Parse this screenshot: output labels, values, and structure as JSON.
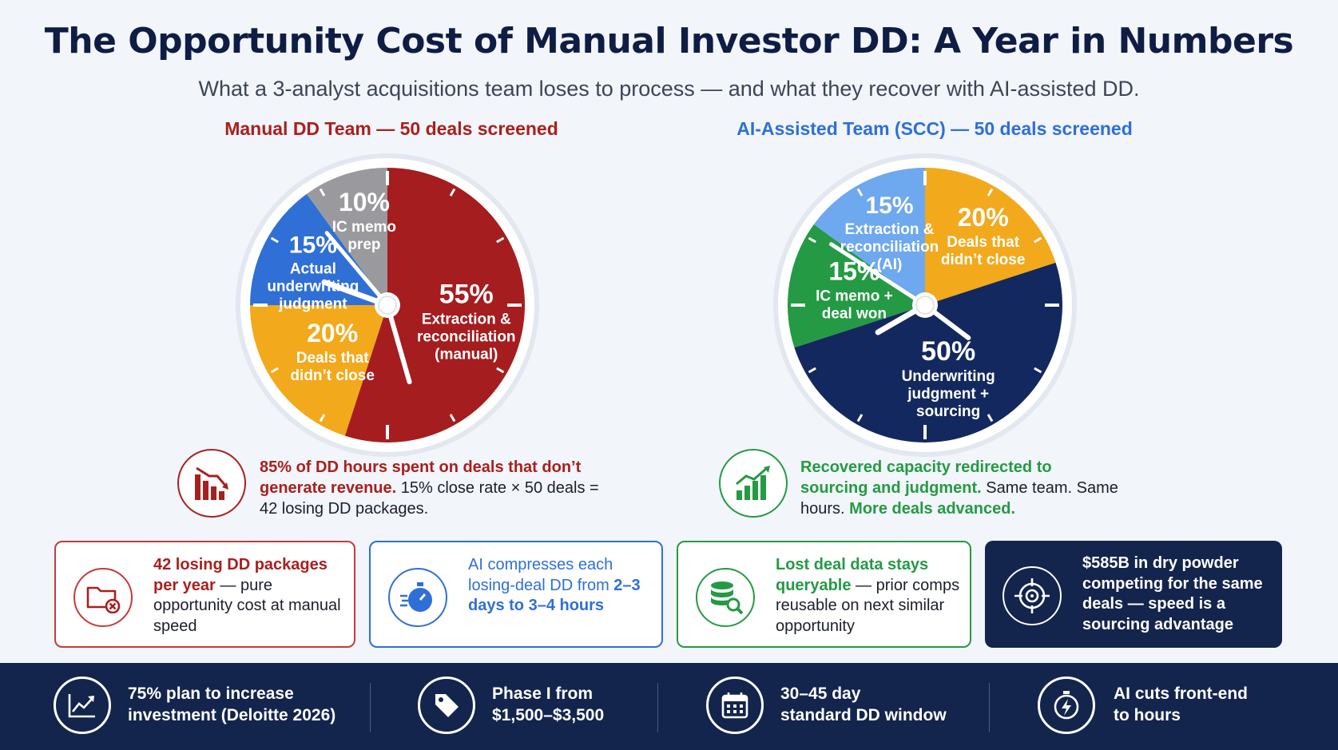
{
  "header": {
    "title": "The Opportunity Cost of Manual Investor DD: A Year in Numbers",
    "subtitle": "What a 3-analyst acquisitions team loses to process — and what they recover with AI-assisted DD."
  },
  "chart_data": [
    {
      "type": "pie",
      "title": "Manual DD Team — 50 deals screened",
      "title_color": "#a8201e",
      "slices": [
        {
          "label": [
            "Extraction &",
            "reconciliation",
            "(manual)"
          ],
          "pct_label": "55%",
          "value": 55,
          "color": "#a51d1f"
        },
        {
          "label": [
            "Deals that",
            "didn’t close"
          ],
          "pct_label": "20%",
          "value": 20,
          "color": "#f2a91c"
        },
        {
          "label": [
            "Actual",
            "underwriting",
            "judgment"
          ],
          "pct_label": "15%",
          "value": 15,
          "color": "#2f6fd6"
        },
        {
          "label": [
            "IC memo",
            "prep"
          ],
          "pct_label": "10%",
          "value": 10,
          "color": "#9a9a9e"
        }
      ]
    },
    {
      "type": "pie",
      "title": "AI-Assisted Team (SCC) — 50 deals screened",
      "title_color": "#2e6fd8",
      "slices": [
        {
          "label": [
            "Deals that",
            "didn’t close"
          ],
          "pct_label": "20%",
          "value": 20,
          "color": "#f2a91c"
        },
        {
          "label": [
            "Underwriting",
            "judgment +",
            "sourcing"
          ],
          "pct_label": "50%",
          "value": 50,
          "color": "#13285e"
        },
        {
          "label": [
            "IC memo +",
            "deal won"
          ],
          "pct_label": "15%",
          "value": 15,
          "color": "#249a44"
        },
        {
          "label": [
            "Extraction &",
            "reconciliation",
            "(AI)"
          ],
          "pct_label": "15%",
          "value": 15,
          "color": "#6ea8ee"
        }
      ]
    }
  ],
  "notes": {
    "left": {
      "bold": "85% of DD hours spent on deals that don’t generate revenue.",
      "rest": " 15% close rate × 50 deals = 42 losing DD packages.",
      "icon": "declining-bar-chart-icon"
    },
    "right": {
      "bold1": "Recovered capacity redirected to sourcing and judgment.",
      "mid": " Same team. Same hours. ",
      "bold2": "More deals advanced.",
      "icon": "rising-bar-chart-icon"
    }
  },
  "cards": [
    {
      "bold": "42 losing DD packages per year",
      "rest": " — pure opportunity cost at manual speed",
      "icon": "folder-x-icon"
    },
    {
      "text": "AI compresses each losing-deal DD from ",
      "bold": "2–3 days to 3–4 hours",
      "icon": "stopwatch-icon"
    },
    {
      "bold": "Lost deal data stays queryable",
      "rest": " — prior comps reusable on next similar opportunity",
      "icon": "database-search-icon"
    },
    {
      "text": "$585B in dry powder competing for the same deals — speed is a sourcing advantage",
      "icon": "target-icon"
    }
  ],
  "footer": [
    {
      "lines": [
        "75% plan to increase",
        "investment (Deloitte 2026)"
      ],
      "icon": "trend-up-icon"
    },
    {
      "lines": [
        "Phase I from",
        "$1,500–$3,500"
      ],
      "icon": "price-tag-icon"
    },
    {
      "lines": [
        "30–45 day",
        "standard DD window"
      ],
      "icon": "calendar-icon"
    },
    {
      "lines": [
        "AI cuts front-end",
        "to hours"
      ],
      "icon": "timer-bolt-icon"
    }
  ],
  "colors": {
    "red": "#a8201e",
    "blue": "#2e6fd8",
    "green": "#249a44",
    "navy": "#13244d"
  }
}
